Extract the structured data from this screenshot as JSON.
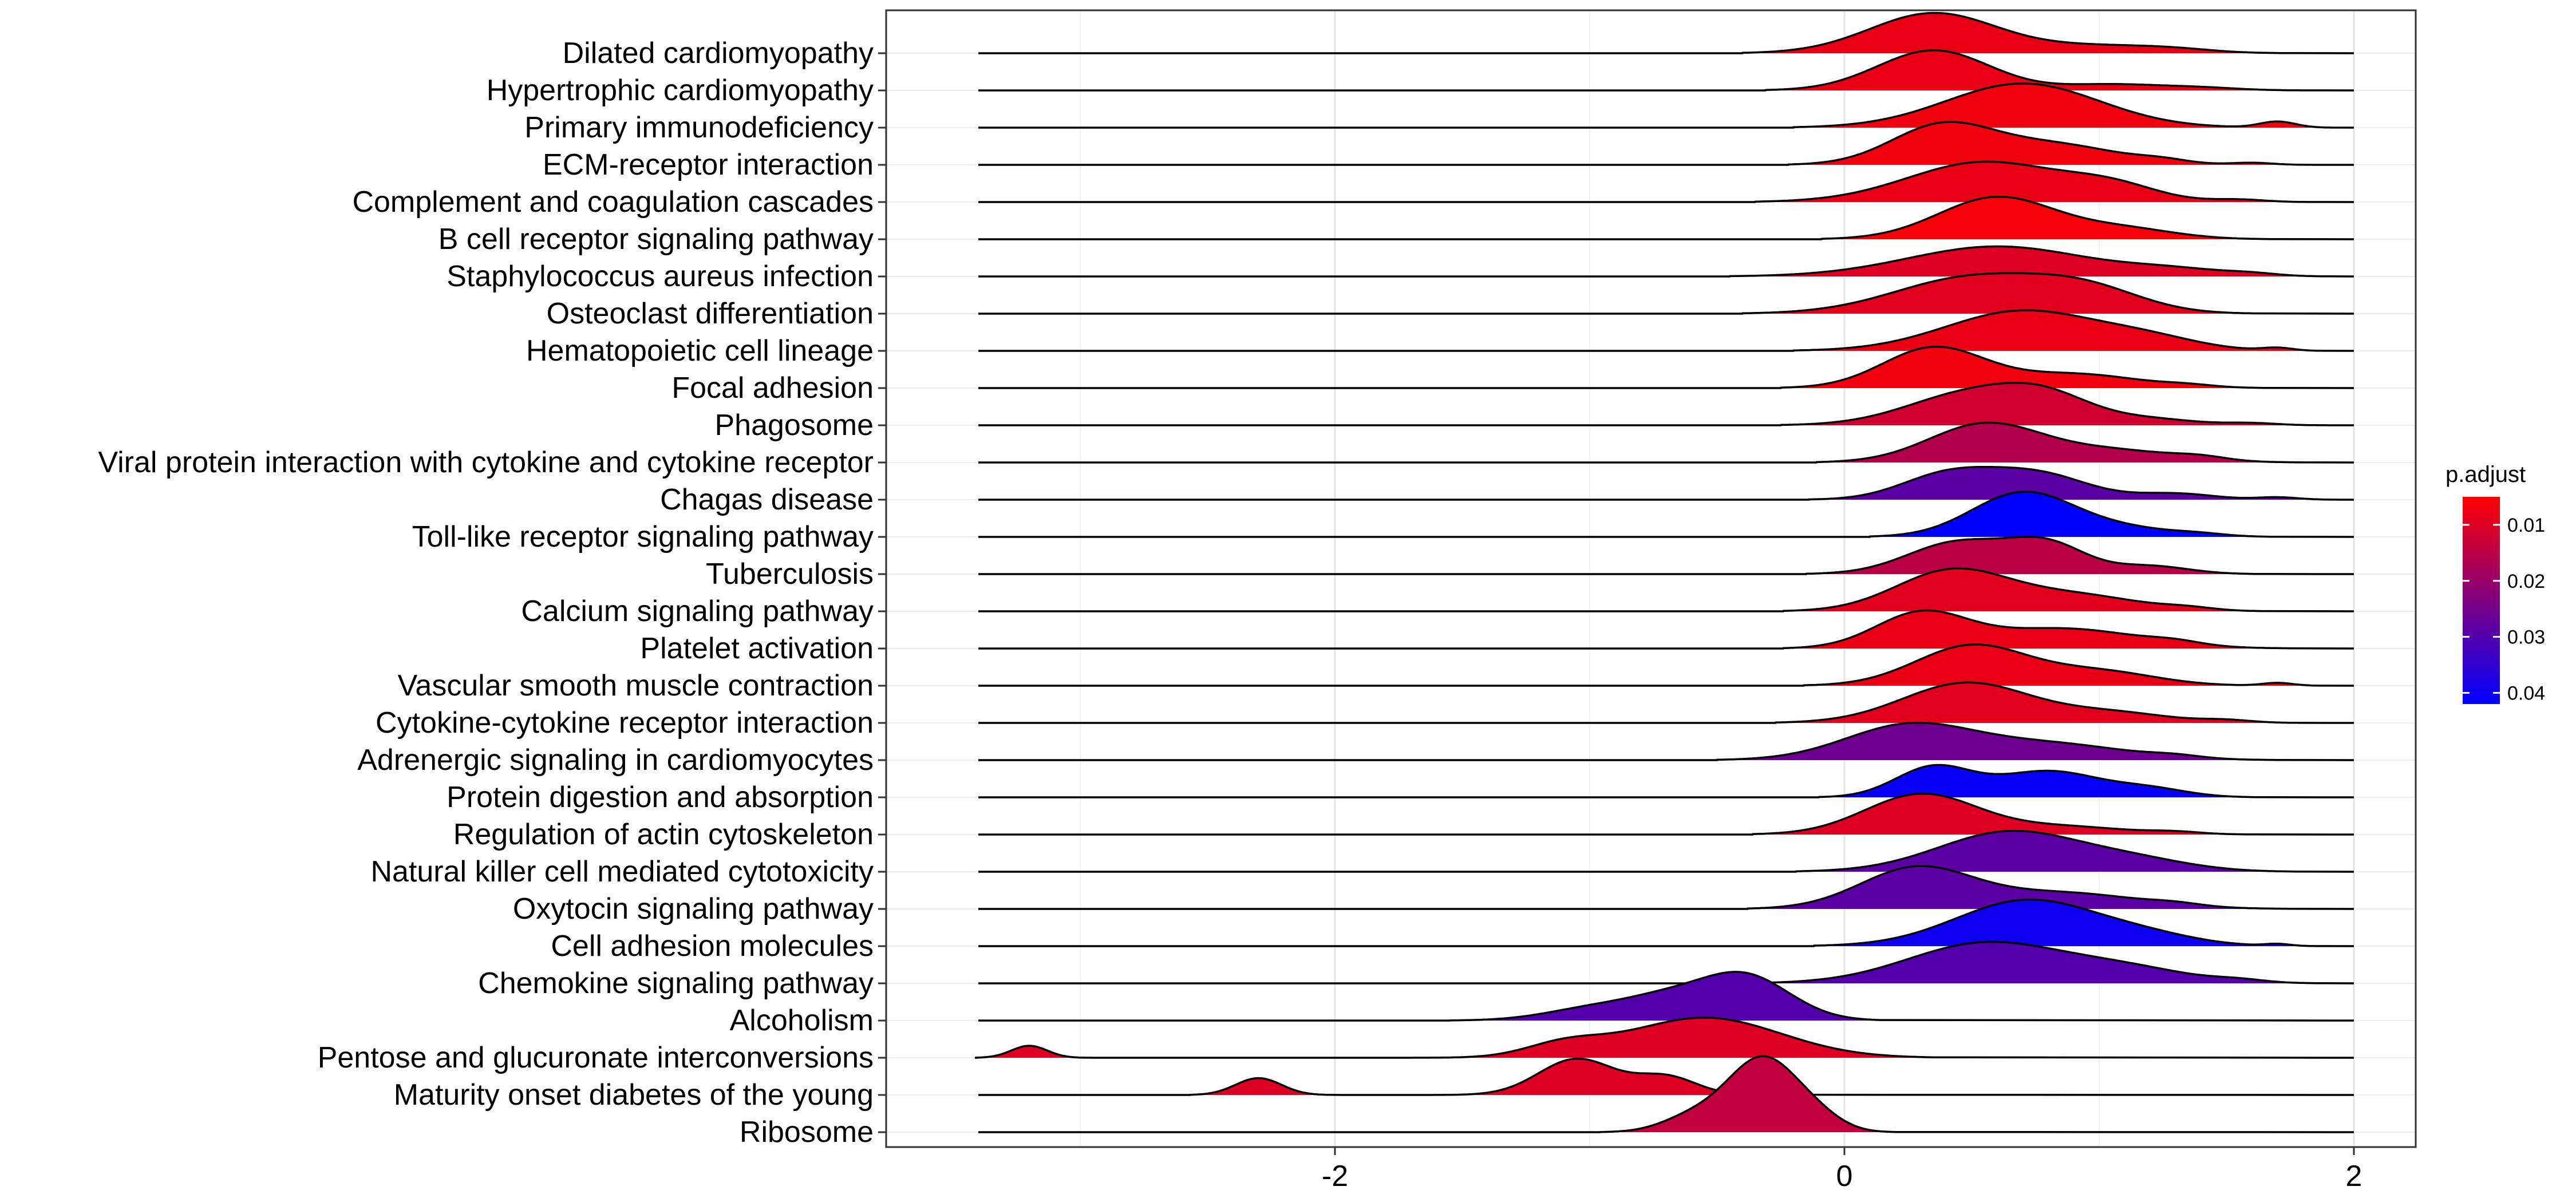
{
  "chart_data": {
    "type": "ridgeline",
    "title": "",
    "xlabel": "",
    "ylabel": "",
    "xlim": [
      -3.5,
      2.3
    ],
    "x_ticks": [
      -2,
      0,
      2
    ],
    "x_tick_labels": [
      "-2",
      "0",
      "2"
    ],
    "grid": true,
    "legend": {
      "title": "p.adjust",
      "position": "right",
      "type": "colorbar",
      "ticks": [
        0.01,
        0.02,
        0.03,
        0.04
      ],
      "tick_labels": [
        "0.01",
        "0.02",
        "0.03",
        "0.04"
      ],
      "range": [
        0.005,
        0.042
      ],
      "low_color": "#ff0000",
      "high_color": "#0000ff"
    },
    "categories": [
      {
        "name": "Dilated cardiomyopathy",
        "p_adjust": 0.008,
        "peaks": [
          [
            0.35,
            0.25,
            1.0
          ],
          [
            1.0,
            0.25,
            0.18
          ],
          [
            1.3,
            0.15,
            0.06
          ]
        ]
      },
      {
        "name": "Hypertrophic cardiomyopathy",
        "p_adjust": 0.008,
        "peaks": [
          [
            0.35,
            0.22,
            1.0
          ],
          [
            1.05,
            0.2,
            0.15
          ],
          [
            1.4,
            0.15,
            0.06
          ]
        ]
      },
      {
        "name": "Primary immunodeficiency",
        "p_adjust": 0.007,
        "peaks": [
          [
            0.7,
            0.3,
            1.1
          ],
          [
            1.7,
            0.07,
            0.15
          ]
        ]
      },
      {
        "name": "ECM-receptor interaction",
        "p_adjust": 0.007,
        "peaks": [
          [
            0.38,
            0.2,
            0.95
          ],
          [
            0.82,
            0.25,
            0.5
          ],
          [
            1.25,
            0.1,
            0.08
          ],
          [
            1.6,
            0.08,
            0.05
          ]
        ]
      },
      {
        "name": "Complement and coagulation cascades",
        "p_adjust": 0.008,
        "peaks": [
          [
            0.55,
            0.3,
            1.0
          ],
          [
            1.05,
            0.18,
            0.35
          ],
          [
            1.55,
            0.1,
            0.06
          ]
        ]
      },
      {
        "name": "B cell receptor signaling pathway",
        "p_adjust": 0.006,
        "peaks": [
          [
            0.6,
            0.23,
            1.05
          ],
          [
            1.1,
            0.2,
            0.25
          ]
        ]
      },
      {
        "name": "Staphylococcus aureus infection",
        "p_adjust": 0.01,
        "peaks": [
          [
            0.6,
            0.35,
            0.75
          ],
          [
            1.3,
            0.2,
            0.15
          ],
          [
            1.6,
            0.1,
            0.05
          ]
        ]
      },
      {
        "name": "Osteoclast differentiation",
        "p_adjust": 0.009,
        "peaks": [
          [
            0.5,
            0.3,
            0.9
          ],
          [
            0.95,
            0.22,
            0.55
          ]
        ]
      },
      {
        "name": "Hematopoietic cell lineage",
        "p_adjust": 0.008,
        "peaks": [
          [
            0.7,
            0.3,
            1.0
          ],
          [
            1.2,
            0.2,
            0.25
          ],
          [
            1.7,
            0.06,
            0.07
          ]
        ]
      },
      {
        "name": "Focal adhesion",
        "p_adjust": 0.007,
        "peaks": [
          [
            0.35,
            0.2,
            1.0
          ],
          [
            0.9,
            0.25,
            0.35
          ],
          [
            1.35,
            0.1,
            0.05
          ]
        ]
      },
      {
        "name": "Phagosome",
        "p_adjust": 0.012,
        "peaks": [
          [
            0.5,
            0.25,
            0.8
          ],
          [
            0.8,
            0.18,
            0.55
          ],
          [
            1.2,
            0.18,
            0.15
          ],
          [
            1.6,
            0.1,
            0.05
          ]
        ]
      },
      {
        "name": "Viral protein interaction with cytokine and cytokine receptor",
        "p_adjust": 0.016,
        "peaks": [
          [
            0.55,
            0.22,
            0.95
          ],
          [
            1.05,
            0.25,
            0.3
          ],
          [
            1.4,
            0.1,
            0.08
          ]
        ]
      },
      {
        "name": "Chagas disease",
        "p_adjust": 0.029,
        "peaks": [
          [
            0.4,
            0.18,
            0.6
          ],
          [
            0.75,
            0.2,
            0.65
          ],
          [
            1.3,
            0.15,
            0.15
          ],
          [
            1.7,
            0.08,
            0.06
          ]
        ]
      },
      {
        "name": "Toll-like receptor signaling pathway",
        "p_adjust": 0.042,
        "peaks": [
          [
            0.7,
            0.2,
            1.1
          ],
          [
            1.1,
            0.2,
            0.2
          ],
          [
            1.4,
            0.1,
            0.05
          ]
        ]
      },
      {
        "name": "Tuberculosis",
        "p_adjust": 0.015,
        "peaks": [
          [
            0.45,
            0.2,
            0.8
          ],
          [
            0.8,
            0.15,
            0.7
          ],
          [
            1.2,
            0.15,
            0.2
          ]
        ]
      },
      {
        "name": "Calcium signaling pathway",
        "p_adjust": 0.009,
        "peaks": [
          [
            0.42,
            0.22,
            1.0
          ],
          [
            0.9,
            0.25,
            0.4
          ],
          [
            1.35,
            0.1,
            0.06
          ]
        ]
      },
      {
        "name": "Platelet activation",
        "p_adjust": 0.008,
        "peaks": [
          [
            0.3,
            0.18,
            0.85
          ],
          [
            0.85,
            0.3,
            0.5
          ],
          [
            1.3,
            0.1,
            0.08
          ]
        ]
      },
      {
        "name": "Vascular smooth muscle contraction",
        "p_adjust": 0.008,
        "peaks": [
          [
            0.5,
            0.22,
            1.0
          ],
          [
            1.0,
            0.22,
            0.35
          ],
          [
            1.7,
            0.06,
            0.07
          ]
        ]
      },
      {
        "name": "Cytokine-cytokine receptor interaction",
        "p_adjust": 0.009,
        "peaks": [
          [
            0.48,
            0.25,
            1.0
          ],
          [
            1.05,
            0.22,
            0.25
          ],
          [
            1.5,
            0.1,
            0.06
          ]
        ]
      },
      {
        "name": "Adrenergic signaling in cardiomyocytes",
        "p_adjust": 0.026,
        "peaks": [
          [
            0.25,
            0.25,
            0.85
          ],
          [
            0.8,
            0.3,
            0.4
          ],
          [
            1.3,
            0.1,
            0.06
          ]
        ]
      },
      {
        "name": "Protein digestion and absorption",
        "p_adjust": 0.041,
        "peaks": [
          [
            0.35,
            0.15,
            0.75
          ],
          [
            0.8,
            0.2,
            0.65
          ],
          [
            1.2,
            0.15,
            0.2
          ]
        ]
      },
      {
        "name": "Regulation of actin cytoskeleton",
        "p_adjust": 0.01,
        "peaks": [
          [
            0.3,
            0.22,
            1.0
          ],
          [
            0.85,
            0.25,
            0.2
          ],
          [
            1.3,
            0.1,
            0.05
          ]
        ]
      },
      {
        "name": "Natural killer cell mediated cytotoxicity",
        "p_adjust": 0.029,
        "peaks": [
          [
            0.65,
            0.28,
            1.0
          ],
          [
            1.15,
            0.22,
            0.25
          ]
        ]
      },
      {
        "name": "Oxytocin signaling pathway",
        "p_adjust": 0.029,
        "peaks": [
          [
            0.28,
            0.22,
            1.0
          ],
          [
            0.85,
            0.3,
            0.4
          ],
          [
            1.3,
            0.1,
            0.06
          ]
        ]
      },
      {
        "name": "Cell adhesion molecules",
        "p_adjust": 0.04,
        "peaks": [
          [
            0.72,
            0.28,
            1.15
          ],
          [
            1.2,
            0.2,
            0.2
          ],
          [
            1.7,
            0.05,
            0.05
          ]
        ]
      },
      {
        "name": "Chemokine signaling pathway",
        "p_adjust": 0.03,
        "peaks": [
          [
            0.55,
            0.3,
            1.0
          ],
          [
            1.1,
            0.25,
            0.35
          ],
          [
            1.55,
            0.1,
            0.06
          ]
        ]
      },
      {
        "name": "Alcoholism",
        "p_adjust": 0.03,
        "peaks": [
          [
            -0.4,
            0.18,
            1.15
          ],
          [
            -0.95,
            0.2,
            0.35
          ],
          [
            -0.7,
            0.15,
            0.35
          ]
        ]
      },
      {
        "name": "Pentose and glucuronate interconversions",
        "p_adjust": 0.01,
        "peaks": [
          [
            -0.55,
            0.3,
            1.0
          ],
          [
            -1.1,
            0.15,
            0.3
          ],
          [
            -3.2,
            0.07,
            0.3
          ]
        ]
      },
      {
        "name": "Maturity onset diabetes of the young",
        "p_adjust": 0.01,
        "peaks": [
          [
            -1.05,
            0.15,
            0.9
          ],
          [
            -0.7,
            0.12,
            0.45
          ],
          [
            -2.3,
            0.09,
            0.42
          ]
        ]
      },
      {
        "name": "Ribosome",
        "p_adjust": 0.014,
        "peaks": [
          [
            -0.32,
            0.14,
            1.85
          ],
          [
            -0.6,
            0.12,
            0.35
          ],
          [
            -0.1,
            0.1,
            0.25
          ]
        ]
      }
    ]
  }
}
